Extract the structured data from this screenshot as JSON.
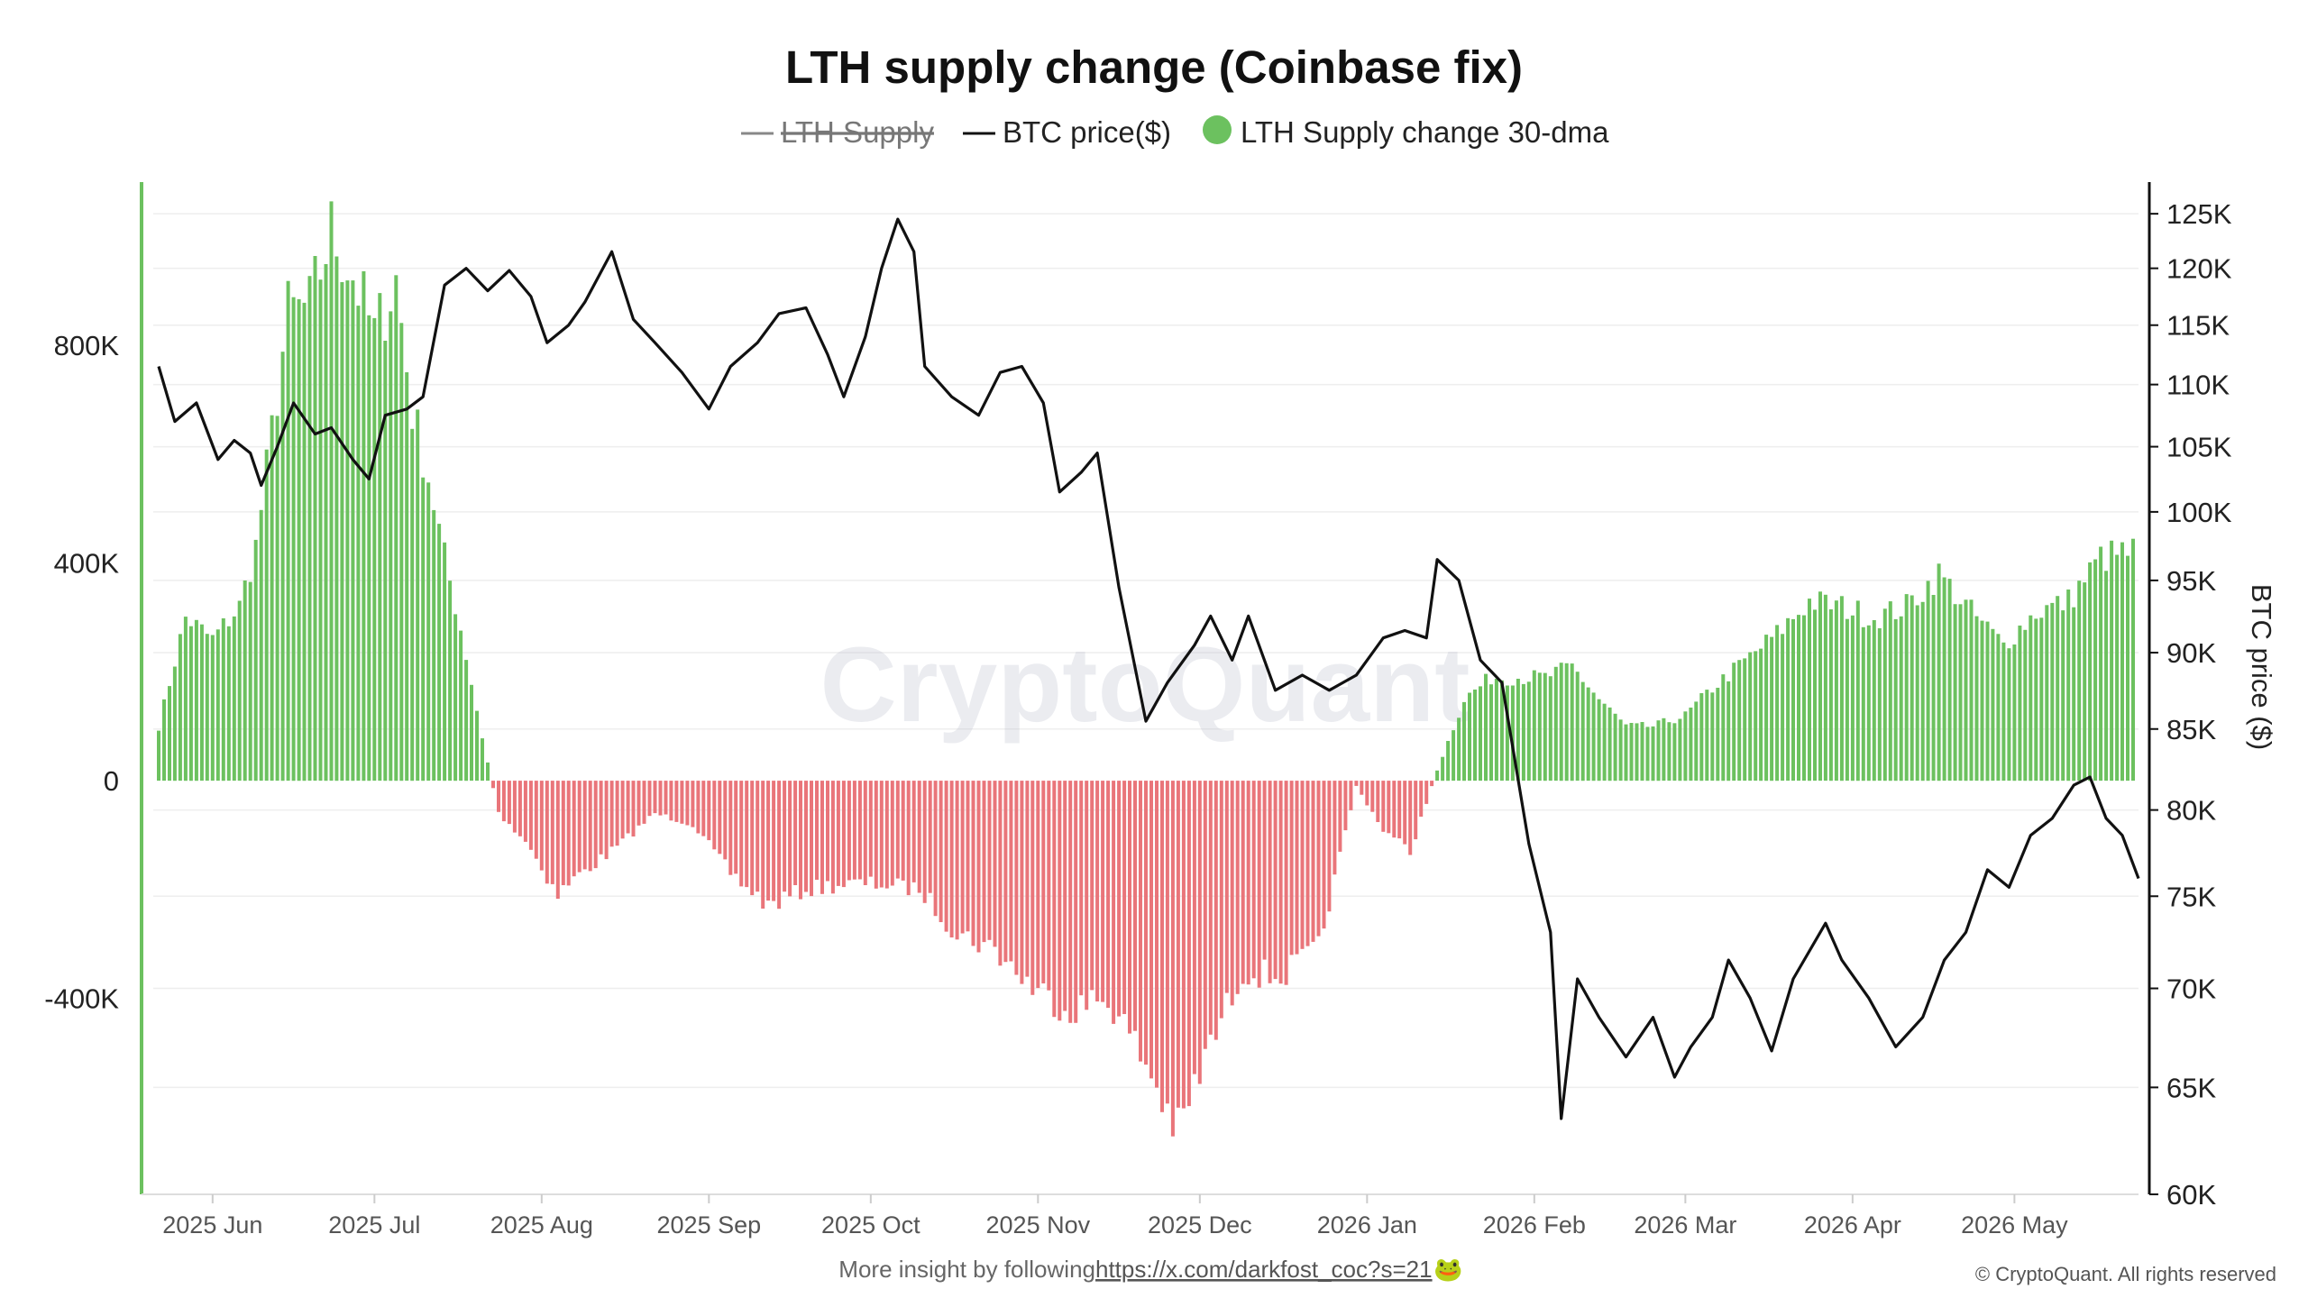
{
  "title": "LTH supply change (Coinbase fix)",
  "legend": {
    "lth_supply": "LTH Supply",
    "btc_price": "BTC price($)",
    "lth_change": "LTH Supply change 30-dma"
  },
  "watermark": "CryptoQuant",
  "footer": {
    "prefix": "More insight by following ",
    "link": "https://x.com/darkfost_coc?s=21",
    "emoji": "🐸",
    "copyright": "© CryptoQuant. All rights reserved"
  },
  "colors": {
    "positive": "#6cc15f",
    "negative": "#e9757a",
    "price_line": "#111111",
    "lth_supply_legend": "#888888",
    "left_axis": "#6cc15f",
    "right_axis": "#111111",
    "grid": "#eeeeee"
  },
  "chart_data": {
    "type": "bar",
    "x_axis": {
      "type": "date",
      "range": [
        "2025-05-21",
        "2026-05-24"
      ],
      "tick_labels": [
        "2025 Jun",
        "2025 Jul",
        "2025 Aug",
        "2025 Sep",
        "2025 Oct",
        "2025 Nov",
        "2025 Dec",
        "2026 Jan",
        "2026 Feb",
        "2026 Mar",
        "2026 Apr",
        "2026 May"
      ]
    },
    "y_left": {
      "tick_labels": [
        "800K",
        "400K",
        "0",
        "-400K"
      ],
      "ticks": [
        800000,
        400000,
        0,
        -400000
      ],
      "range": [
        -760000,
        1100000
      ]
    },
    "y_right": {
      "title": "BTC price ($)",
      "scale": "log",
      "range": [
        60000,
        128000
      ],
      "tick_labels": [
        "125K",
        "120K",
        "115K",
        "110K",
        "105K",
        "100K",
        "95K",
        "90K",
        "85K",
        "80K",
        "75K",
        "70K",
        "65K",
        "60K"
      ],
      "ticks": [
        125000,
        120000,
        115000,
        110000,
        105000,
        100000,
        95000,
        90000,
        85000,
        80000,
        75000,
        70000,
        65000,
        60000
      ]
    },
    "grid": true,
    "legend_position": "top",
    "series": [
      {
        "name": "LTH Supply change 30-dma",
        "kind": "bar",
        "points": [
          [
            "2025-05-22",
            100000
          ],
          [
            "2025-05-27",
            300000
          ],
          [
            "2025-06-01",
            260000
          ],
          [
            "2025-06-06",
            320000
          ],
          [
            "2025-06-09",
            430000
          ],
          [
            "2025-06-12",
            640000
          ],
          [
            "2025-06-15",
            860000
          ],
          [
            "2025-06-19",
            870000
          ],
          [
            "2025-06-23",
            1010000
          ],
          [
            "2025-06-27",
            930000
          ],
          [
            "2025-07-01",
            820000
          ],
          [
            "2025-07-05",
            920000
          ],
          [
            "2025-07-08",
            680000
          ],
          [
            "2025-07-11",
            560000
          ],
          [
            "2025-07-14",
            410000
          ],
          [
            "2025-07-17",
            280000
          ],
          [
            "2025-07-21",
            80000
          ],
          [
            "2025-07-24",
            -60000
          ],
          [
            "2025-07-29",
            -110000
          ],
          [
            "2025-08-04",
            -210000
          ],
          [
            "2025-08-07",
            -180000
          ],
          [
            "2025-08-14",
            -130000
          ],
          [
            "2025-08-22",
            -60000
          ],
          [
            "2025-08-29",
            -80000
          ],
          [
            "2025-09-05",
            -170000
          ],
          [
            "2025-09-12",
            -230000
          ],
          [
            "2025-09-19",
            -200000
          ],
          [
            "2025-09-26",
            -190000
          ],
          [
            "2025-10-03",
            -190000
          ],
          [
            "2025-10-10",
            -200000
          ],
          [
            "2025-10-17",
            -280000
          ],
          [
            "2025-10-24",
            -310000
          ],
          [
            "2025-10-31",
            -380000
          ],
          [
            "2025-11-07",
            -420000
          ],
          [
            "2025-11-14",
            -400000
          ],
          [
            "2025-11-21",
            -520000
          ],
          [
            "2025-11-27",
            -650000
          ],
          [
            "2025-12-02",
            -510000
          ],
          [
            "2025-12-09",
            -350000
          ],
          [
            "2025-12-16",
            -360000
          ],
          [
            "2025-12-23",
            -310000
          ],
          [
            "2025-12-30",
            -10000
          ],
          [
            "2026-01-04",
            -90000
          ],
          [
            "2026-01-09",
            -130000
          ],
          [
            "2026-01-14",
            20000
          ],
          [
            "2026-01-19",
            150000
          ],
          [
            "2026-01-24",
            190000
          ],
          [
            "2026-01-29",
            190000
          ],
          [
            "2026-02-03",
            190000
          ],
          [
            "2026-02-08",
            210000
          ],
          [
            "2026-02-13",
            150000
          ],
          [
            "2026-02-18",
            100000
          ],
          [
            "2026-02-23",
            100000
          ],
          [
            "2026-03-01",
            120000
          ],
          [
            "2026-03-06",
            170000
          ],
          [
            "2026-03-12",
            220000
          ],
          [
            "2026-03-18",
            270000
          ],
          [
            "2026-03-24",
            330000
          ],
          [
            "2026-03-30",
            320000
          ],
          [
            "2026-04-05",
            300000
          ],
          [
            "2026-04-11",
            320000
          ],
          [
            "2026-04-17",
            380000
          ],
          [
            "2026-04-23",
            310000
          ],
          [
            "2026-04-29",
            250000
          ],
          [
            "2026-05-05",
            310000
          ],
          [
            "2026-05-11",
            330000
          ],
          [
            "2026-05-17",
            410000
          ],
          [
            "2026-05-23",
            420000
          ]
        ]
      },
      {
        "name": "BTC price($)",
        "kind": "line",
        "axis": "right",
        "points": [
          [
            "2025-05-22",
            111500
          ],
          [
            "2025-05-25",
            107000
          ],
          [
            "2025-05-29",
            108500
          ],
          [
            "2025-06-02",
            104000
          ],
          [
            "2025-06-05",
            105500
          ],
          [
            "2025-06-08",
            104500
          ],
          [
            "2025-06-10",
            102000
          ],
          [
            "2025-06-13",
            105000
          ],
          [
            "2025-06-16",
            108500
          ],
          [
            "2025-06-20",
            106000
          ],
          [
            "2025-06-23",
            106500
          ],
          [
            "2025-06-27",
            104000
          ],
          [
            "2025-06-30",
            102500
          ],
          [
            "2025-07-03",
            107500
          ],
          [
            "2025-07-07",
            108000
          ],
          [
            "2025-07-10",
            109000
          ],
          [
            "2025-07-14",
            118500
          ],
          [
            "2025-07-18",
            120000
          ],
          [
            "2025-07-22",
            118000
          ],
          [
            "2025-07-26",
            119800
          ],
          [
            "2025-07-30",
            117500
          ],
          [
            "2025-08-02",
            113500
          ],
          [
            "2025-08-06",
            115000
          ],
          [
            "2025-08-09",
            117000
          ],
          [
            "2025-08-14",
            121500
          ],
          [
            "2025-08-18",
            115500
          ],
          [
            "2025-08-22",
            113500
          ],
          [
            "2025-08-27",
            111000
          ],
          [
            "2025-09-01",
            108000
          ],
          [
            "2025-09-05",
            111500
          ],
          [
            "2025-09-10",
            113500
          ],
          [
            "2025-09-14",
            116000
          ],
          [
            "2025-09-19",
            116500
          ],
          [
            "2025-09-23",
            112500
          ],
          [
            "2025-09-26",
            109000
          ],
          [
            "2025-09-30",
            114000
          ],
          [
            "2025-10-03",
            120000
          ],
          [
            "2025-10-06",
            124500
          ],
          [
            "2025-10-09",
            121500
          ],
          [
            "2025-10-11",
            111500
          ],
          [
            "2025-10-16",
            109000
          ],
          [
            "2025-10-21",
            107500
          ],
          [
            "2025-10-25",
            111000
          ],
          [
            "2025-10-29",
            111500
          ],
          [
            "2025-11-02",
            108500
          ],
          [
            "2025-11-05",
            101500
          ],
          [
            "2025-11-09",
            103000
          ],
          [
            "2025-11-12",
            104500
          ],
          [
            "2025-11-16",
            94500
          ],
          [
            "2025-11-21",
            85500
          ],
          [
            "2025-11-25",
            88000
          ],
          [
            "2025-11-30",
            90500
          ],
          [
            "2025-12-03",
            92500
          ],
          [
            "2025-12-07",
            89500
          ],
          [
            "2025-12-10",
            92500
          ],
          [
            "2025-12-15",
            87500
          ],
          [
            "2025-12-20",
            88500
          ],
          [
            "2025-12-25",
            87500
          ],
          [
            "2025-12-30",
            88500
          ],
          [
            "2026-01-04",
            91000
          ],
          [
            "2026-01-08",
            91500
          ],
          [
            "2026-01-12",
            91000
          ],
          [
            "2026-01-14",
            96500
          ],
          [
            "2026-01-18",
            95000
          ],
          [
            "2026-01-22",
            89500
          ],
          [
            "2026-01-26",
            88000
          ],
          [
            "2026-01-31",
            78000
          ],
          [
            "2026-02-04",
            73000
          ],
          [
            "2026-02-06",
            63500
          ],
          [
            "2026-02-09",
            70500
          ],
          [
            "2026-02-13",
            68500
          ],
          [
            "2026-02-18",
            66500
          ],
          [
            "2026-02-23",
            68500
          ],
          [
            "2026-02-27",
            65500
          ],
          [
            "2026-03-02",
            67000
          ],
          [
            "2026-03-06",
            68500
          ],
          [
            "2026-03-09",
            71500
          ],
          [
            "2026-03-13",
            69500
          ],
          [
            "2026-03-17",
            66800
          ],
          [
            "2026-03-21",
            70500
          ],
          [
            "2026-03-27",
            73500
          ],
          [
            "2026-03-30",
            71500
          ],
          [
            "2026-04-04",
            69500
          ],
          [
            "2026-04-09",
            67000
          ],
          [
            "2026-04-14",
            68500
          ],
          [
            "2026-04-18",
            71500
          ],
          [
            "2026-04-22",
            73000
          ],
          [
            "2026-04-26",
            76500
          ],
          [
            "2026-04-30",
            75500
          ],
          [
            "2026-05-04",
            78500
          ],
          [
            "2026-05-08",
            79500
          ],
          [
            "2026-05-12",
            81500
          ],
          [
            "2026-05-15",
            82000
          ],
          [
            "2026-05-18",
            79500
          ],
          [
            "2026-05-21",
            78500
          ],
          [
            "2026-05-24",
            76000
          ]
        ]
      },
      {
        "name": "LTH Supply",
        "kind": "line",
        "hidden": true,
        "points": []
      }
    ]
  }
}
